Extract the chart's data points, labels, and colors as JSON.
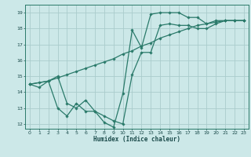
{
  "xlabel": "Humidex (Indice chaleur)",
  "bg_color": "#cce8e8",
  "grid_color": "#aacccc",
  "line_color": "#2a7a6a",
  "xlim": [
    -0.5,
    23.5
  ],
  "ylim": [
    11.7,
    19.5
  ],
  "xticks": [
    0,
    1,
    2,
    3,
    4,
    5,
    6,
    7,
    8,
    9,
    10,
    11,
    12,
    13,
    14,
    15,
    16,
    17,
    18,
    19,
    20,
    21,
    22,
    23
  ],
  "yticks": [
    12,
    13,
    14,
    15,
    16,
    17,
    18,
    19
  ],
  "line1_x": [
    0,
    1,
    2,
    3,
    4,
    5,
    6,
    7,
    8,
    9,
    10,
    11,
    12,
    13,
    14,
    15,
    16,
    17,
    18,
    19,
    20,
    21,
    22,
    23
  ],
  "line1_y": [
    14.5,
    14.3,
    14.7,
    13.0,
    12.5,
    13.3,
    12.8,
    12.8,
    12.1,
    11.8,
    13.9,
    17.9,
    16.8,
    18.9,
    19.0,
    19.0,
    19.0,
    18.7,
    18.7,
    18.3,
    18.5,
    18.5,
    18.5,
    18.5
  ],
  "line2_x": [
    0,
    2,
    3,
    4,
    5,
    6,
    7,
    8,
    9,
    10,
    11,
    12,
    13,
    14,
    15,
    16,
    17,
    18,
    19,
    20,
    21,
    22,
    23
  ],
  "line2_y": [
    14.5,
    14.7,
    15.0,
    13.3,
    13.0,
    13.5,
    12.8,
    12.5,
    12.2,
    12.0,
    15.1,
    16.5,
    16.5,
    18.2,
    18.3,
    18.2,
    18.2,
    18.0,
    18.0,
    18.3,
    18.5,
    18.5,
    18.5
  ],
  "line3_x": [
    0,
    1,
    2,
    3,
    4,
    5,
    6,
    7,
    8,
    9,
    10,
    11,
    12,
    13,
    14,
    15,
    16,
    17,
    18,
    19,
    20,
    21,
    22,
    23
  ],
  "line3_y": [
    14.5,
    14.6,
    14.7,
    14.9,
    15.1,
    15.3,
    15.5,
    15.7,
    15.9,
    16.1,
    16.4,
    16.6,
    16.9,
    17.1,
    17.4,
    17.6,
    17.8,
    18.0,
    18.2,
    18.3,
    18.4,
    18.5,
    18.5,
    18.5
  ]
}
